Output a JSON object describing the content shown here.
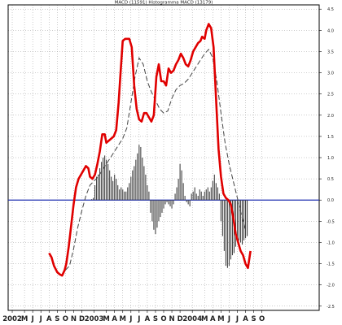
{
  "chart_data": {
    "type": "line",
    "title": "MACD (11591) Histogramma MACD (13179)",
    "y_ticks": [
      "4.5",
      "4.0",
      "3.5",
      "3.0",
      "2.5",
      "2.0",
      "1.5",
      "1.0",
      "0.5",
      "0.0",
      "-0.5",
      "-1.0",
      "-1.5",
      "-2.0",
      "-2.5"
    ],
    "y_tick_values": [
      4.5,
      4.0,
      3.5,
      3.0,
      2.5,
      2.0,
      1.5,
      1.0,
      0.5,
      0.0,
      -0.5,
      -1.0,
      -1.5,
      -2.0,
      -2.5
    ],
    "ylim": [
      -2.6,
      4.6
    ],
    "xlim": [
      0,
      38
    ],
    "x_ticks": [
      "2002",
      "M",
      "J",
      "J",
      "A",
      "S",
      "O",
      "N",
      "D",
      "2003",
      "M",
      "A",
      "M",
      "J",
      "J",
      "A",
      "S",
      "O",
      "N",
      "D",
      "2004",
      "M",
      "A",
      "M",
      "J",
      "J",
      "A",
      "S",
      "O"
    ],
    "x_tick_positions": [
      0.5,
      2,
      3,
      4,
      5,
      6,
      7,
      8,
      9,
      10.5,
      12,
      13,
      14,
      15,
      16,
      17,
      18,
      19,
      20,
      21,
      22.5,
      24,
      25,
      26,
      27,
      28,
      29,
      30,
      31
    ],
    "zero_line": 0.0,
    "colors": {
      "macd": "#e00000",
      "signal": "#444444",
      "histogram": "#444444",
      "zero": "#2030b0",
      "grid": "#999999"
    },
    "series": [
      {
        "style": "solid-thick",
        "x": [
          5.0,
          5.3,
          5.6,
          6.0,
          6.3,
          6.6,
          6.9,
          7.1,
          7.4,
          7.7,
          8.0,
          8.3,
          8.6,
          8.9,
          9.2,
          9.5,
          9.8,
          10.0,
          10.3,
          10.6,
          10.9,
          11.2,
          11.5,
          11.8,
          12.0,
          12.3,
          12.6,
          12.9,
          13.2,
          13.5,
          13.7,
          14.0,
          14.3,
          14.5,
          14.8,
          15.1,
          15.4,
          15.7,
          16.0,
          16.3,
          16.6,
          16.9,
          17.2,
          17.5,
          17.8,
          18.1,
          18.4,
          18.7,
          19.0,
          19.3,
          19.6,
          19.9,
          20.2,
          20.5,
          20.8,
          21.1,
          21.4,
          21.7,
          22.0,
          22.3,
          22.6,
          22.9,
          23.2,
          23.5,
          23.7,
          24.0,
          24.2,
          24.5,
          24.8,
          25.1,
          25.4,
          25.7,
          26.0,
          26.3,
          26.6,
          26.9,
          27.2,
          27.5,
          27.8,
          28.1,
          28.4,
          28.7,
          29.0,
          29.3,
          29.6
        ],
        "values": [
          -1.25,
          -1.35,
          -1.55,
          -1.7,
          -1.75,
          -1.78,
          -1.65,
          -1.5,
          -1.1,
          -0.6,
          -0.1,
          0.3,
          0.5,
          0.6,
          0.7,
          0.8,
          0.75,
          0.55,
          0.5,
          0.6,
          0.85,
          1.15,
          1.55,
          1.55,
          1.35,
          1.4,
          1.45,
          1.5,
          1.65,
          2.3,
          2.9,
          3.75,
          3.8,
          3.8,
          3.8,
          3.6,
          2.7,
          2.15,
          1.9,
          1.85,
          2.05,
          2.05,
          1.95,
          1.85,
          2.0,
          2.9,
          3.2,
          2.8,
          2.8,
          2.7,
          3.1,
          3.0,
          3.05,
          3.2,
          3.3,
          3.45,
          3.35,
          3.2,
          3.15,
          3.3,
          3.5,
          3.6,
          3.7,
          3.75,
          3.85,
          3.8,
          4.0,
          4.15,
          4.05,
          3.6,
          2.4,
          1.2,
          0.55,
          0.15,
          0.05,
          0.0,
          -0.1,
          -0.4,
          -0.8,
          -1.0,
          -1.2,
          -1.3,
          -1.5,
          -1.6,
          -1.2
        ]
      },
      {
        "style": "dashed",
        "x": [
          7.0,
          7.5,
          8.0,
          8.5,
          9.0,
          9.5,
          10.0,
          10.5,
          11.0,
          11.5,
          12.0,
          12.5,
          13.0,
          13.5,
          14.0,
          14.5,
          15.0,
          15.5,
          16.0,
          16.5,
          17.0,
          17.5,
          18.0,
          18.5,
          19.0,
          19.5,
          20.0,
          20.5,
          21.0,
          21.5,
          22.0,
          22.5,
          23.0,
          23.5,
          24.0,
          24.5,
          25.0,
          25.5,
          26.0,
          26.5,
          27.0,
          27.5,
          28.0,
          28.5,
          29.0
        ],
        "values": [
          -1.65,
          -1.55,
          -1.15,
          -0.65,
          -0.25,
          0.1,
          0.35,
          0.45,
          0.55,
          0.7,
          0.85,
          1.0,
          1.15,
          1.3,
          1.45,
          1.7,
          2.3,
          2.9,
          3.35,
          3.2,
          2.8,
          2.55,
          2.35,
          2.15,
          2.05,
          2.1,
          2.4,
          2.6,
          2.7,
          2.75,
          2.85,
          3.0,
          3.15,
          3.3,
          3.45,
          3.55,
          3.35,
          2.8,
          2.05,
          1.35,
          0.85,
          0.45,
          0.05,
          -0.35,
          -0.7
        ]
      },
      {
        "style": "histogram",
        "x": [
          10.2,
          10.4,
          10.6,
          10.8,
          11.0,
          11.2,
          11.4,
          11.6,
          11.8,
          12.0,
          12.2,
          12.4,
          12.6,
          12.8,
          13.0,
          13.2,
          13.4,
          13.6,
          13.8,
          14.0,
          14.2,
          14.4,
          14.6,
          14.8,
          15.0,
          15.2,
          15.4,
          15.6,
          15.8,
          16.0,
          16.2,
          16.4,
          16.6,
          16.8,
          17.0,
          17.2,
          17.4,
          17.6,
          17.8,
          18.0,
          18.2,
          18.4,
          18.6,
          18.8,
          19.0,
          19.2,
          19.4,
          19.6,
          19.8,
          20.0,
          20.2,
          20.4,
          20.6,
          20.8,
          21.0,
          21.2,
          21.4,
          21.6,
          21.8,
          22.0,
          22.2,
          22.4,
          22.6,
          22.8,
          23.0,
          23.2,
          23.4,
          23.6,
          23.8,
          24.0,
          24.2,
          24.4,
          24.6,
          24.8,
          25.0,
          25.2,
          25.4,
          25.6,
          25.8,
          26.0,
          26.2,
          26.4,
          26.6,
          26.8,
          27.0,
          27.2,
          27.4,
          27.6,
          27.8,
          28.0,
          28.2,
          28.4,
          28.6,
          28.8,
          29.0,
          29.2
        ],
        "values": [
          0.02,
          0.05,
          0.35,
          0.55,
          0.6,
          0.75,
          0.9,
          1.0,
          1.05,
          0.95,
          0.85,
          0.7,
          0.55,
          0.45,
          0.6,
          0.5,
          0.35,
          0.25,
          0.3,
          0.25,
          0.2,
          0.2,
          0.3,
          0.4,
          0.55,
          0.7,
          0.8,
          0.95,
          1.1,
          1.3,
          1.25,
          1.0,
          0.8,
          0.6,
          0.35,
          0.2,
          -0.3,
          -0.5,
          -0.7,
          -0.8,
          -0.65,
          -0.5,
          -0.4,
          -0.3,
          -0.2,
          -0.1,
          -0.05,
          -0.1,
          -0.15,
          -0.2,
          -0.1,
          0.15,
          0.3,
          0.5,
          0.85,
          0.7,
          0.4,
          0.1,
          -0.05,
          -0.1,
          -0.15,
          0.15,
          0.2,
          0.3,
          0.15,
          0.1,
          0.25,
          0.2,
          0.1,
          0.2,
          0.25,
          0.3,
          0.2,
          0.3,
          0.45,
          0.6,
          0.4,
          0.3,
          0.15,
          -0.5,
          -0.85,
          -1.2,
          -1.55,
          -1.6,
          -1.55,
          -1.4,
          -1.3,
          -1.25,
          -1.1,
          -1.0,
          -0.95,
          -1.0,
          -1.05,
          -0.95,
          -0.9,
          -0.85
        ]
      }
    ]
  }
}
